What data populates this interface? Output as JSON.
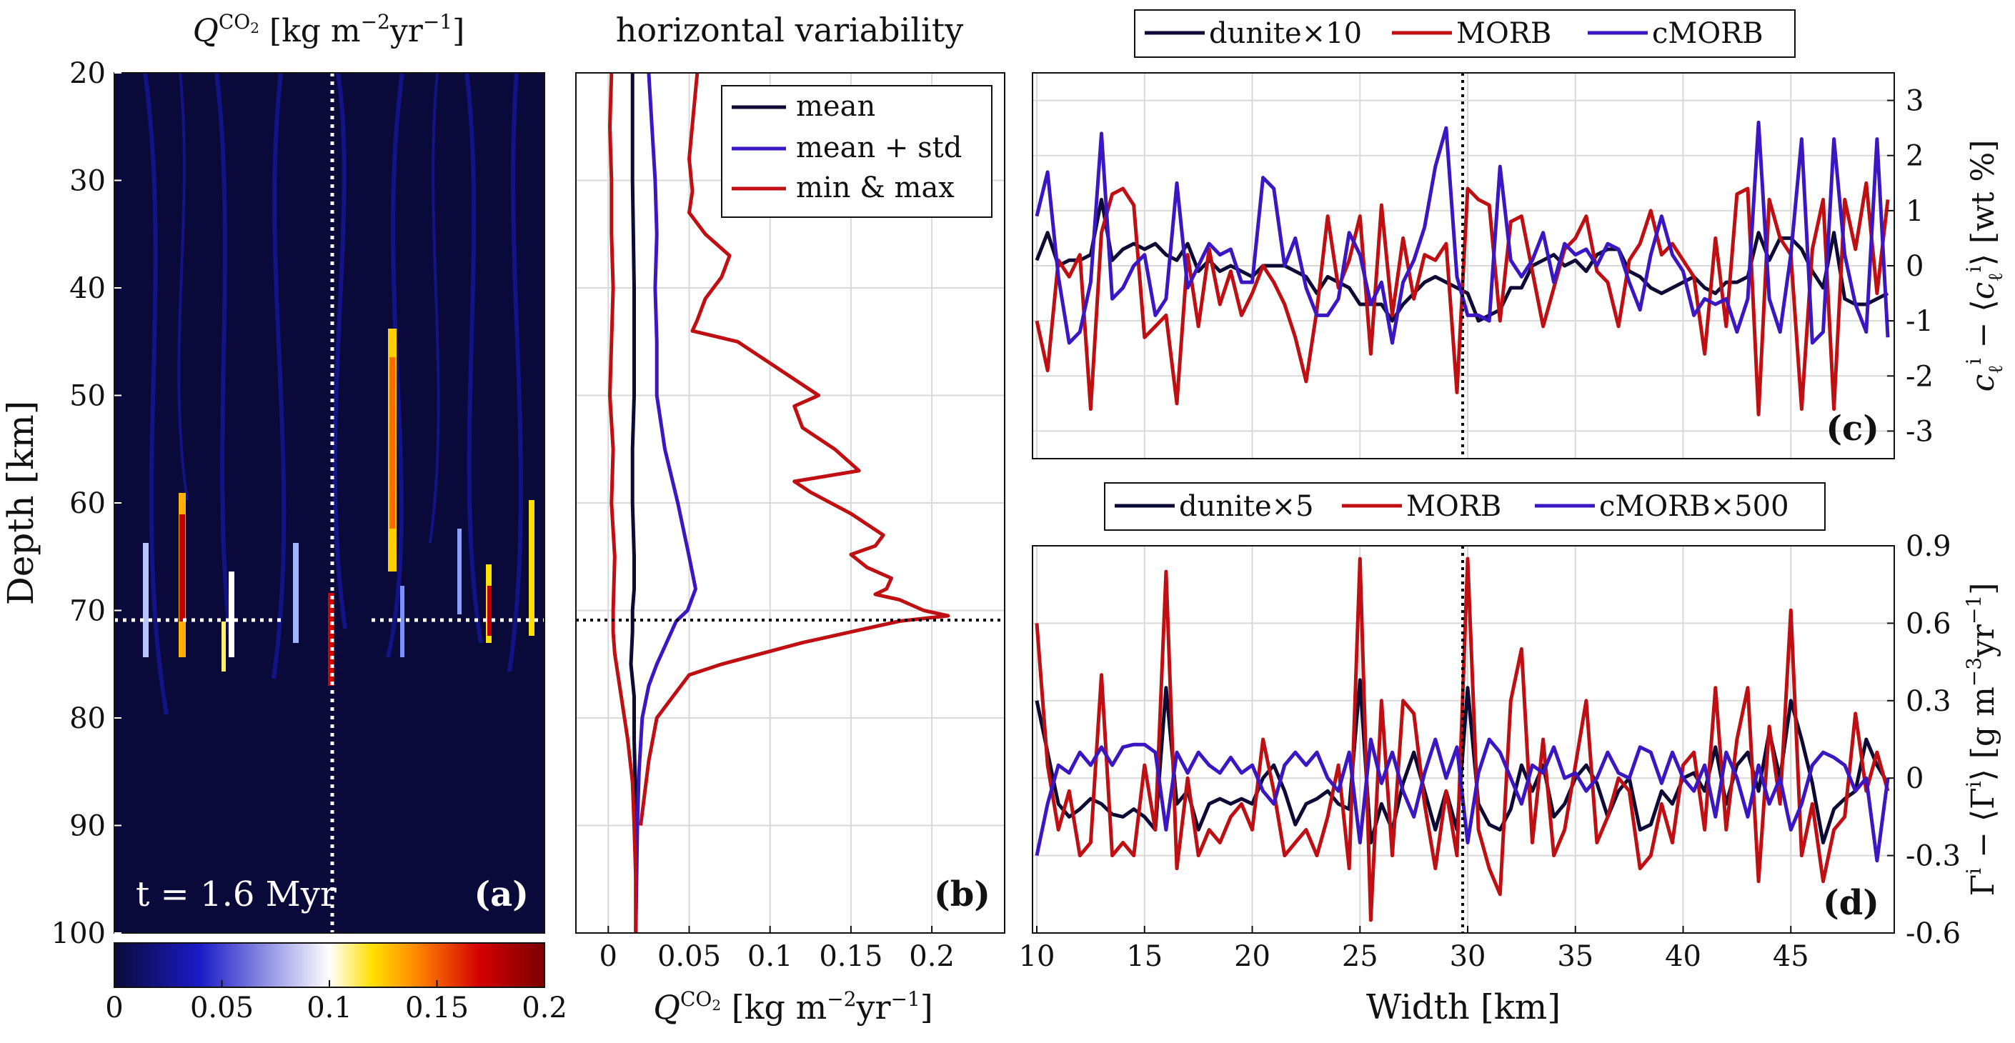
{
  "colors": {
    "dunite": "#0d0a35",
    "morb": "#c00f12",
    "cmorb": "#3b17c4",
    "grid": "#d9d9d9",
    "heat_stops": [
      "#0a0a3a",
      "#1b1bc8",
      "#ffffff",
      "#ffe000",
      "#ff8a00",
      "#d20000",
      "#7a0000"
    ]
  },
  "chart_data": [
    {
      "panel": "(a)",
      "type": "heatmap",
      "title": "Q^{CO2} [kg m^{-2}yr^{-1}]",
      "ylabel": "Depth [km]",
      "ylim": [
        20,
        100
      ],
      "yticks": [
        "20",
        "30",
        "40",
        "50",
        "60",
        "70",
        "80",
        "90",
        "100"
      ],
      "annotation": "t = 1.6 Myr",
      "colorbar": {
        "range": [
          0,
          0.2
        ],
        "ticks": [
          "0",
          "0.05",
          "0.1",
          "0.15",
          "0.2"
        ]
      },
      "marker_depth_km": 70.5,
      "marker_width_km": 30
    },
    {
      "panel": "(b)",
      "type": "line",
      "title": "horizontal variability",
      "xlabel": "Q^{CO2} [kg m^{-2}yr^{-1}]",
      "xlim": [
        -0.02,
        0.245
      ],
      "ylim": [
        20,
        100
      ],
      "xticks": [
        "0",
        "0.05",
        "0.1",
        "0.15",
        "0.2"
      ],
      "grid": true,
      "legend_position": "top-right",
      "legend": [
        "mean",
        "mean + std",
        "min & max"
      ],
      "marker_depth_km": 70.5,
      "series": [
        {
          "name": "mean",
          "color_key": "dunite",
          "x": [
            0.015,
            0.015,
            0.016,
            0.016,
            0.016,
            0.015,
            0.015,
            0.016,
            0.016,
            0.015,
            0.015,
            0.014,
            0.016,
            0.016,
            0.017,
            0.017,
            0.017
          ],
          "y": [
            20,
            30,
            40,
            45,
            50,
            55,
            60,
            65,
            68,
            70,
            72,
            75,
            78,
            82,
            88,
            94,
            100
          ]
        },
        {
          "name": "mean + std",
          "color_key": "cmorb",
          "x": [
            0.025,
            0.027,
            0.029,
            0.03,
            0.029,
            0.03,
            0.03,
            0.035,
            0.043,
            0.05,
            0.054,
            0.049,
            0.042,
            0.036,
            0.03,
            0.025,
            0.021,
            0.019,
            0.018,
            0.017
          ],
          "y": [
            20,
            25,
            30,
            35,
            40,
            45,
            50,
            55,
            60,
            65,
            68,
            70,
            71,
            73,
            75,
            77,
            80,
            85,
            90,
            100
          ]
        },
        {
          "name": "min",
          "color_key": "morb",
          "x": [
            0.002,
            0.001,
            0.002,
            0.002,
            0.003,
            0.002,
            0.001,
            0.003,
            0.002,
            0.004,
            0.003,
            0.003,
            0.004,
            0.008,
            0.012,
            0.015,
            0.016,
            0.017,
            0.017
          ],
          "y": [
            20,
            25,
            30,
            35,
            40,
            45,
            50,
            55,
            60,
            65,
            70,
            72,
            74,
            78,
            82,
            86,
            90,
            95,
            100
          ]
        },
        {
          "name": "max",
          "color_key": "morb",
          "x": [
            0.055,
            0.05,
            0.052,
            0.05,
            0.06,
            0.075,
            0.07,
            0.06,
            0.055,
            0.052,
            0.08,
            0.13,
            0.115,
            0.12,
            0.14,
            0.155,
            0.115,
            0.125,
            0.15,
            0.17,
            0.165,
            0.15,
            0.16,
            0.175,
            0.172,
            0.165,
            0.18,
            0.195,
            0.21,
            0.18,
            0.12,
            0.07,
            0.05,
            0.04,
            0.03,
            0.025,
            0.02
          ],
          "y": [
            20,
            28,
            31,
            33,
            35,
            37,
            39,
            41,
            43,
            44,
            45,
            50,
            51,
            53,
            55,
            57,
            58,
            59,
            61,
            63,
            64,
            64.8,
            66,
            67,
            68,
            68.5,
            69,
            70,
            70.5,
            71,
            73,
            75,
            76,
            78,
            80,
            84,
            90
          ]
        }
      ]
    },
    {
      "panel": "(c)",
      "type": "line",
      "ylabel": "c_l^i - ⟨c_l^i⟩ [wt %]",
      "xlim": [
        9.8,
        49.8
      ],
      "ylim": [
        -3.5,
        3.5
      ],
      "yticks": [
        "3",
        "2",
        "1",
        "0",
        "-1",
        "-2",
        "-3"
      ],
      "grid": true,
      "legend_position": "top",
      "legend": [
        "dunite×10",
        "MORB",
        "cMORB"
      ],
      "marker_width_km": 30,
      "x": [
        10,
        10.5,
        11,
        11.5,
        12,
        12.5,
        13,
        13.5,
        14,
        14.5,
        15,
        15.5,
        16,
        16.5,
        17,
        17.5,
        18,
        18.5,
        19,
        19.5,
        20,
        20.5,
        21,
        21.5,
        22,
        22.5,
        23,
        23.5,
        24,
        24.5,
        25,
        25.5,
        26,
        26.5,
        27,
        27.5,
        28,
        28.5,
        29,
        29.5,
        30,
        30.5,
        31,
        31.5,
        32,
        32.5,
        33,
        33.5,
        34,
        34.5,
        35,
        35.5,
        36,
        36.5,
        37,
        37.5,
        38,
        38.5,
        39,
        39.5,
        40,
        40.5,
        41,
        41.5,
        42,
        42.5,
        43,
        43.5,
        44,
        44.5,
        45,
        45.5,
        46,
        46.5,
        47,
        47.5,
        48,
        48.5,
        49,
        49.5
      ],
      "series": [
        {
          "name": "dunite×10",
          "color_key": "dunite",
          "values": [
            0.1,
            0.6,
            0,
            0.1,
            0.1,
            0.2,
            1.2,
            0.1,
            0.3,
            0.4,
            0.3,
            0.4,
            0.2,
            0.1,
            0.4,
            -0.1,
            0.1,
            -0.1,
            0,
            -0.1,
            -0.2,
            0,
            0,
            0,
            -0.1,
            -0.2,
            -0.5,
            -0.2,
            -0.3,
            -0.4,
            -0.7,
            -0.7,
            -0.7,
            -1,
            -0.7,
            -0.5,
            -0.3,
            -0.2,
            -0.3,
            -0.4,
            -0.5,
            -1,
            -0.9,
            -0.8,
            -0.4,
            -0.4,
            0,
            0.1,
            0.2,
            0,
            0.1,
            -0.1,
            0.2,
            0.3,
            0.3,
            -0.1,
            -0.2,
            -0.4,
            -0.5,
            -0.4,
            -0.3,
            -0.2,
            -0.4,
            -0.5,
            -0.3,
            -0.3,
            -0.2,
            0.6,
            0.1,
            0.5,
            0.5,
            0.3,
            -0.1,
            -0.4,
            0.6,
            -0.6,
            -0.7,
            -0.7,
            -0.6,
            -0.5
          ]
        },
        {
          "name": "MORB",
          "color_key": "morb",
          "values": [
            -1,
            -1.9,
            0.1,
            -0.2,
            0.2,
            -2.6,
            0.6,
            1.3,
            1.4,
            1.1,
            -1.3,
            -1.1,
            -0.9,
            -2.5,
            0.2,
            -1.1,
            0.3,
            -0.7,
            -0.1,
            -0.9,
            -0.5,
            0,
            -0.3,
            -0.7,
            -1.3,
            -2.1,
            -0.8,
            0.9,
            -0.4,
            0.1,
            0.9,
            -1.6,
            1.1,
            -0.9,
            0.5,
            -0.6,
            0.2,
            0.1,
            0.4,
            -2.3,
            1.4,
            1.2,
            1.1,
            -1,
            0.8,
            0.9,
            -0.1,
            -1.1,
            -0.4,
            0.3,
            0.5,
            0.9,
            -0.1,
            -0.3,
            -1.1,
            0.1,
            0.4,
            1,
            0.2,
            0.4,
            0.1,
            -0.2,
            -1.6,
            0.5,
            -1.1,
            1.3,
            1.4,
            -2.7,
            1.2,
            0.5,
            0.2,
            -2.6,
            0.3,
            1.2,
            -2.6,
            1.2,
            0.3,
            1.5,
            -0.5,
            1.2
          ]
        },
        {
          "name": "cMORB",
          "color_key": "cmorb",
          "values": [
            0.9,
            1.7,
            -0.2,
            -1.4,
            -1.2,
            -0.3,
            2.4,
            -0.6,
            -0.4,
            0,
            0.2,
            -0.9,
            -0.6,
            1.5,
            -0.4,
            0,
            0.4,
            0.2,
            0.3,
            -0.3,
            -0.3,
            1.6,
            1.4,
            0,
            0.5,
            -0.4,
            -0.9,
            -0.9,
            -0.6,
            0.6,
            0.2,
            -0.7,
            -0.3,
            -1.4,
            -0.3,
            0.1,
            0.7,
            1.8,
            2.5,
            -0.2,
            -0.9,
            -0.9,
            -1,
            1.8,
            0.1,
            -0.2,
            0.1,
            0.6,
            -0.3,
            0.4,
            0.2,
            0.3,
            0,
            0.4,
            0.3,
            -0.3,
            -0.8,
            0.2,
            0.9,
            0.2,
            -0.1,
            -0.9,
            -0.6,
            -0.7,
            -0.6,
            -1.2,
            -0.6,
            2.6,
            -0.6,
            -1.2,
            0.2,
            2.3,
            -1.4,
            -1.2,
            2.3,
            0.2,
            -0.7,
            -1.2,
            2.3,
            -1.3
          ]
        }
      ]
    },
    {
      "panel": "(d)",
      "type": "line",
      "xlabel": "Width [km]",
      "ylabel": "Γ^i - ⟨Γ^i⟩ [g m^{-3}yr^{-1}]",
      "xlim": [
        9.8,
        49.8
      ],
      "ylim": [
        -0.6,
        0.9
      ],
      "xticks": [
        "10",
        "15",
        "20",
        "25",
        "30",
        "35",
        "40",
        "45"
      ],
      "yticks": [
        "0.9",
        "0.6",
        "0.3",
        "0",
        "-0.3",
        "-0.6"
      ],
      "grid": true,
      "legend_position": "top",
      "legend": [
        "dunite×5",
        "MORB",
        "cMORB×500"
      ],
      "marker_width_km": 30,
      "x": [
        10,
        10.5,
        11,
        11.5,
        12,
        12.5,
        13,
        13.5,
        14,
        14.5,
        15,
        15.5,
        16,
        16.5,
        17,
        17.5,
        18,
        18.5,
        19,
        19.5,
        20,
        20.5,
        21,
        21.5,
        22,
        22.5,
        23,
        23.5,
        24,
        24.5,
        25,
        25.5,
        26,
        26.5,
        27,
        27.5,
        28,
        28.5,
        29,
        29.5,
        30,
        30.5,
        31,
        31.5,
        32,
        32.5,
        33,
        33.5,
        34,
        34.5,
        35,
        35.5,
        36,
        36.5,
        37,
        37.5,
        38,
        38.5,
        39,
        39.5,
        40,
        40.5,
        41,
        41.5,
        42,
        42.5,
        43,
        43.5,
        44,
        44.5,
        45,
        45.5,
        46,
        46.5,
        47,
        47.5,
        48,
        48.5,
        49,
        49.5
      ],
      "series": [
        {
          "name": "dunite×5",
          "color_key": "dunite",
          "values": [
            0.3,
            0.1,
            -0.1,
            -0.15,
            -0.12,
            -0.08,
            -0.1,
            -0.14,
            -0.15,
            -0.12,
            -0.15,
            -0.2,
            0.35,
            -0.1,
            -0.05,
            -0.2,
            -0.1,
            -0.08,
            -0.1,
            -0.08,
            -0.1,
            0,
            0.05,
            -0.05,
            -0.18,
            -0.1,
            -0.08,
            -0.05,
            -0.1,
            -0.12,
            0.38,
            -0.25,
            -0.1,
            -0.2,
            -0.02,
            0.1,
            -0.05,
            -0.2,
            -0.05,
            -0.2,
            0.35,
            -0.1,
            -0.18,
            -0.2,
            -0.12,
            0.05,
            -0.05,
            0.05,
            -0.15,
            -0.1,
            0,
            0.05,
            -0.02,
            -0.15,
            -0.05,
            0,
            -0.2,
            -0.18,
            -0.05,
            -0.1,
            0,
            0.02,
            -0.05,
            0.12,
            -0.1,
            0.05,
            0.1,
            -0.05,
            0.18,
            0,
            0.3,
            0.15,
            -0.02,
            -0.25,
            -0.12,
            -0.08,
            -0.05,
            0.15,
            0.05,
            -0.02
          ]
        },
        {
          "name": "MORB",
          "color_key": "morb",
          "values": [
            0.6,
            0.05,
            -0.2,
            -0.05,
            -0.3,
            -0.25,
            0.4,
            -0.3,
            -0.25,
            -0.3,
            0.05,
            -0.2,
            0.8,
            -0.35,
            0,
            -0.3,
            -0.2,
            -0.25,
            -0.15,
            -0.1,
            -0.2,
            0.15,
            -0.05,
            -0.3,
            -0.25,
            -0.2,
            -0.3,
            -0.15,
            0.05,
            -0.35,
            0.85,
            -0.55,
            0.3,
            -0.3,
            0.3,
            0.25,
            -0.1,
            -0.35,
            -0.05,
            -0.3,
            0.85,
            -0.2,
            -0.35,
            -0.45,
            0.3,
            0.5,
            -0.25,
            0.15,
            -0.3,
            -0.2,
            0.05,
            0.3,
            -0.25,
            -0.15,
            0,
            -0.05,
            -0.35,
            -0.3,
            -0.1,
            -0.25,
            0.05,
            0.1,
            -0.2,
            0.35,
            -0.2,
            0.15,
            0.35,
            -0.4,
            0.2,
            -0.1,
            0.65,
            -0.3,
            -0.1,
            -0.4,
            -0.2,
            -0.15,
            0.25,
            -0.05,
            0.1,
            -0.05
          ]
        },
        {
          "name": "cMORB×500",
          "color_key": "cmorb",
          "values": [
            -0.3,
            -0.1,
            0.05,
            0.02,
            0.1,
            0.05,
            0.12,
            0.05,
            0.12,
            0.13,
            0.13,
            0.1,
            -0.2,
            0.1,
            0.02,
            0.1,
            0.05,
            0.02,
            0.08,
            0.02,
            0.05,
            -0.05,
            -0.1,
            0.05,
            0.1,
            0.05,
            0.1,
            0,
            -0.05,
            0.1,
            -0.25,
            0.15,
            -0.02,
            0.1,
            -0.05,
            -0.15,
            0.02,
            0.15,
            0,
            0.12,
            -0.25,
            0.02,
            0.15,
            0.1,
            0,
            -0.1,
            0.05,
            0.02,
            0.12,
            0,
            0.02,
            -0.05,
            0,
            0.1,
            0.02,
            0,
            0.12,
            0.1,
            -0.02,
            0.1,
            0,
            -0.05,
            0.05,
            -0.15,
            0.1,
            0,
            -0.15,
            0.05,
            -0.1,
            0,
            -0.2,
            -0.1,
            0.05,
            0.1,
            0.08,
            0.05,
            -0.05,
            0,
            -0.32,
            0
          ]
        }
      ]
    }
  ]
}
